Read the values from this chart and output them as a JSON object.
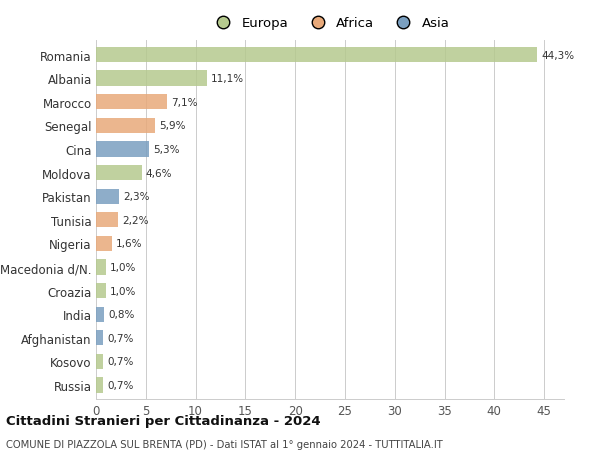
{
  "categories": [
    "Romania",
    "Albania",
    "Marocco",
    "Senegal",
    "Cina",
    "Moldova",
    "Pakistan",
    "Tunisia",
    "Nigeria",
    "Macedonia d/N.",
    "Croazia",
    "India",
    "Afghanistan",
    "Kosovo",
    "Russia"
  ],
  "values": [
    44.3,
    11.1,
    7.1,
    5.9,
    5.3,
    4.6,
    2.3,
    2.2,
    1.6,
    1.0,
    1.0,
    0.8,
    0.7,
    0.7,
    0.7
  ],
  "labels": [
    "44,3%",
    "11,1%",
    "7,1%",
    "5,9%",
    "5,3%",
    "4,6%",
    "2,3%",
    "2,2%",
    "1,6%",
    "1,0%",
    "1,0%",
    "0,8%",
    "0,7%",
    "0,7%",
    "0,7%"
  ],
  "continents": [
    "Europa",
    "Europa",
    "Africa",
    "Africa",
    "Asia",
    "Europa",
    "Asia",
    "Africa",
    "Africa",
    "Europa",
    "Europa",
    "Asia",
    "Asia",
    "Europa",
    "Europa"
  ],
  "colors": {
    "Europa": "#b5c98e",
    "Africa": "#e8a97a",
    "Asia": "#7a9fc0"
  },
  "title1": "Cittadini Stranieri per Cittadinanza - 2024",
  "title2": "COMUNE DI PIAZZOLA SUL BRENTA (PD) - Dati ISTAT al 1° gennaio 2024 - TUTTITALIA.IT",
  "xlim": [
    0,
    47
  ],
  "xticks": [
    0,
    5,
    10,
    15,
    20,
    25,
    30,
    35,
    40,
    45
  ],
  "background_color": "#ffffff",
  "grid_color": "#cccccc",
  "bar_height": 0.65
}
